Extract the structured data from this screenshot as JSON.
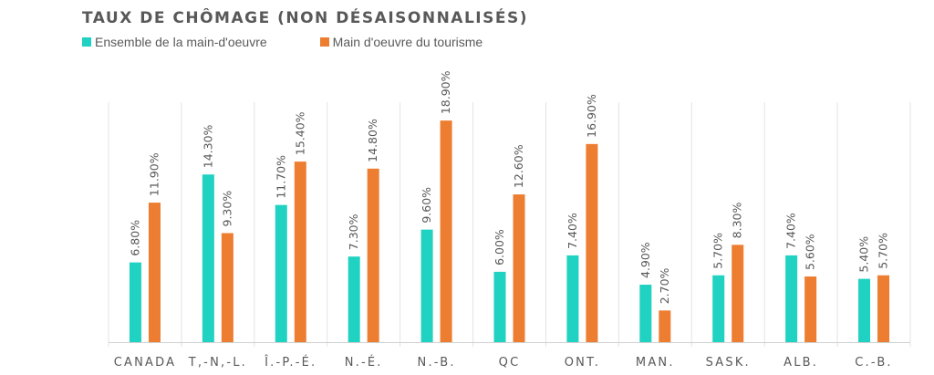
{
  "chart_data": {
    "type": "bar",
    "title": "TAUX DE CHÔMAGE (NON DÉSAISONNALISÉS)",
    "categories": [
      "CANADA",
      "T,-N,-L.",
      "Î.-P.-É.",
      "N.-É.",
      "N.-B.",
      "QC",
      "ONT.",
      "MAN.",
      "SASK.",
      "ALB.",
      "C.-B."
    ],
    "series": [
      {
        "name": "Ensemble de la main-d'oeuvre",
        "color": "#1fd2c1",
        "values": [
          6.8,
          14.3,
          11.7,
          7.3,
          9.6,
          6.0,
          7.4,
          4.9,
          5.7,
          7.4,
          5.4
        ],
        "labels": [
          "6.80%",
          "14.30%",
          "11.70%",
          "7.30%",
          "9.60%",
          "6.00%",
          "7.40%",
          "4.90%",
          "5.70%",
          "7.40%",
          "5.40%"
        ]
      },
      {
        "name": "Main d'oeuvre du tourisme",
        "color": "#ed7d31",
        "values": [
          11.9,
          9.3,
          15.4,
          14.8,
          18.9,
          12.6,
          16.9,
          2.7,
          8.3,
          5.6,
          5.7
        ],
        "labels": [
          "11.90%",
          "9.30%",
          "15.40%",
          "14.80%",
          "18.90%",
          "12.60%",
          "16.90%",
          "2.70%",
          "8.30%",
          "5.60%",
          "5.70%"
        ]
      }
    ],
    "ylim": [
      0,
      20
    ],
    "grid": "vertical category separators",
    "legend_position": "top-left"
  }
}
